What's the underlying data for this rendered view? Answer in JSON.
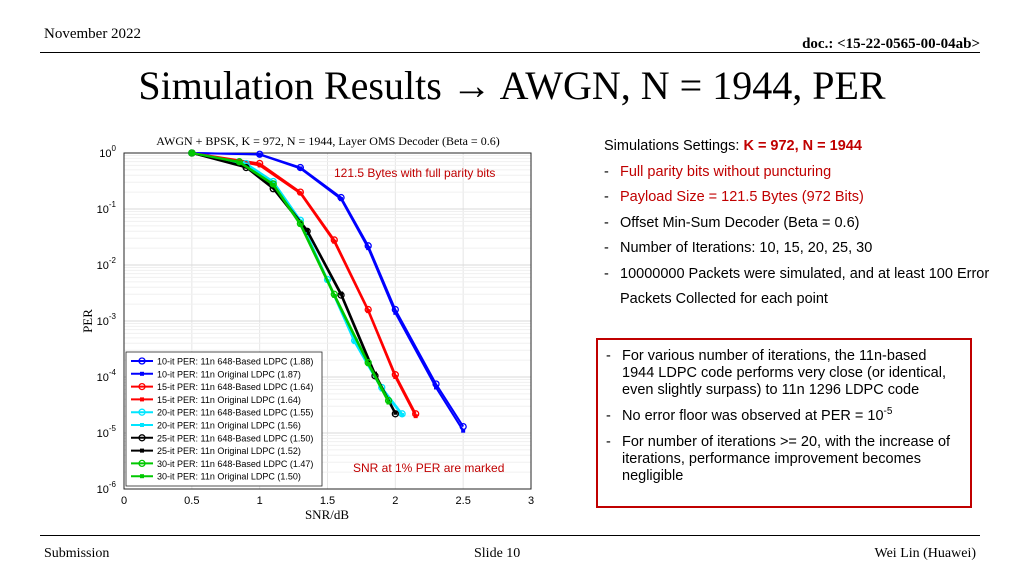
{
  "header": {
    "date": "November 2022",
    "doc": "doc.: <15-22-0565-00-04ab>"
  },
  "title": {
    "prefix": "Simulation Results",
    "arrow": "→",
    "suffix": "AWGN, N = 1944, PER"
  },
  "settings": {
    "label": "Simulations Settings: ",
    "highlight": "K = 972, N = 1944",
    "items": [
      "Full parity bits without puncturing",
      "Payload Size = 121.5 Bytes (972 Bits)",
      "Offset Min-Sum Decoder (Beta = 0.6)",
      "Number of Iterations: 10, 15, 20, 25, 30",
      "10000000 Packets were simulated, and at least 100 Error Packets Collected for each point"
    ]
  },
  "findings": {
    "item1": "For various number of iterations, the 11n-based 1944 LDPC code performs very close (or identical, even slightly surpass) to 11n 1296 LDPC code",
    "item2_prefix": "No error floor was observed at PER = 10",
    "item2_sup": "-5",
    "item3": "For number of iterations >= 20, with the increase of iterations, performance improvement becomes negligible"
  },
  "footer": {
    "left": "Submission",
    "center": "Slide 10",
    "right": "Wei Lin (Huawei)"
  },
  "chart_data": {
    "type": "line",
    "title": "AWGN + BPSK, K = 972, N = 1944, Layer OMS Decoder (Beta = 0.6)",
    "xlabel": "SNR/dB",
    "ylabel": "PER",
    "xlim": [
      0,
      3
    ],
    "ylim": [
      1e-06,
      1
    ],
    "y_scale": "log",
    "xticks": [
      "0",
      "0.5",
      "1",
      "1.5",
      "2",
      "2.5",
      "3"
    ],
    "yticks": [
      {
        "base": "10",
        "exp": "0"
      },
      {
        "base": "10",
        "exp": "-1"
      },
      {
        "base": "10",
        "exp": "-2"
      },
      {
        "base": "10",
        "exp": "-3"
      },
      {
        "base": "10",
        "exp": "-4"
      },
      {
        "base": "10",
        "exp": "-5"
      },
      {
        "base": "10",
        "exp": "-6"
      }
    ],
    "grid": true,
    "legend_position": "bottom-left",
    "annotations": [
      "121.5 Bytes with full parity bits",
      "SNR at 1% PER are marked"
    ],
    "series": [
      {
        "name": "10-it PER: 11n 648-Based LDPC (1.88)",
        "color": "#0000ff",
        "marker": "circle",
        "x": [
          0.5,
          1.0,
          1.3,
          1.6,
          1.8,
          2.0,
          2.3,
          2.5
        ],
        "y": [
          1.0,
          0.95,
          0.55,
          0.16,
          0.022,
          0.0016,
          7.5e-05,
          1.3e-05
        ]
      },
      {
        "name": "10-it PER: 11n Original LDPC (1.87)",
        "color": "#0000ff",
        "marker": "square",
        "x": [
          0.5,
          1.0,
          1.3,
          1.6,
          1.8,
          2.0,
          2.3,
          2.5
        ],
        "y": [
          1.0,
          0.94,
          0.53,
          0.15,
          0.02,
          0.0014,
          6.5e-05,
          1.1e-05
        ]
      },
      {
        "name": "15-it PER: 11n 648-Based LDPC (1.64)",
        "color": "#ff0000",
        "marker": "circle",
        "x": [
          0.5,
          1.0,
          1.3,
          1.55,
          1.8,
          2.0,
          2.15
        ],
        "y": [
          1.0,
          0.65,
          0.2,
          0.028,
          0.0016,
          0.00011,
          2.2e-05
        ]
      },
      {
        "name": "15-it PER: 11n Original LDPC (1.64)",
        "color": "#ff0000",
        "marker": "square",
        "x": [
          0.5,
          1.0,
          1.3,
          1.55,
          1.8,
          2.0,
          2.15
        ],
        "y": [
          1.0,
          0.6,
          0.19,
          0.026,
          0.0015,
          0.0001,
          2e-05
        ]
      },
      {
        "name": "20-it PER: 11n 648-Based LDPC (1.55)",
        "color": "#00e5ff",
        "marker": "circle",
        "x": [
          0.5,
          0.9,
          1.1,
          1.3,
          1.5,
          1.7,
          1.9,
          2.05
        ],
        "y": [
          1.0,
          0.65,
          0.31,
          0.063,
          0.0055,
          0.00045,
          6.5e-05,
          2.2e-05
        ]
      },
      {
        "name": "20-it PER: 11n Original LDPC (1.56)",
        "color": "#00e5ff",
        "marker": "square",
        "x": [
          0.5,
          0.9,
          1.1,
          1.3,
          1.5,
          1.7,
          1.9,
          2.05
        ],
        "y": [
          1.0,
          0.62,
          0.29,
          0.06,
          0.0052,
          0.00042,
          6e-05,
          2.1e-05
        ]
      },
      {
        "name": "25-it PER: 11n 648-Based LDPC (1.50)",
        "color": "#000000",
        "marker": "circle",
        "x": [
          0.5,
          0.9,
          1.1,
          1.35,
          1.6,
          1.85,
          2.0
        ],
        "y": [
          1.0,
          0.55,
          0.23,
          0.04,
          0.0029,
          0.000105,
          2.2e-05
        ]
      },
      {
        "name": "25-it PER: 11n Original LDPC (1.52)",
        "color": "#000000",
        "marker": "square",
        "x": [
          0.5,
          0.9,
          1.1,
          1.35,
          1.6,
          1.85,
          2.0
        ],
        "y": [
          1.0,
          0.57,
          0.25,
          0.042,
          0.0031,
          0.000115,
          2.3e-05
        ]
      },
      {
        "name": "30-it PER: 11n 648-Based LDPC (1.47)",
        "color": "#00c800",
        "marker": "circle",
        "x": [
          0.5,
          0.85,
          1.1,
          1.3,
          1.55,
          1.8,
          1.95
        ],
        "y": [
          1.0,
          0.7,
          0.28,
          0.055,
          0.003,
          0.00018,
          3.8e-05
        ]
      },
      {
        "name": "30-it PER: 11n Original LDPC (1.50)",
        "color": "#00c800",
        "marker": "square",
        "x": [
          0.5,
          0.85,
          1.1,
          1.3,
          1.55,
          1.8,
          1.95
        ],
        "y": [
          1.0,
          0.68,
          0.27,
          0.052,
          0.0028,
          0.00017,
          3.5e-05
        ]
      }
    ]
  }
}
